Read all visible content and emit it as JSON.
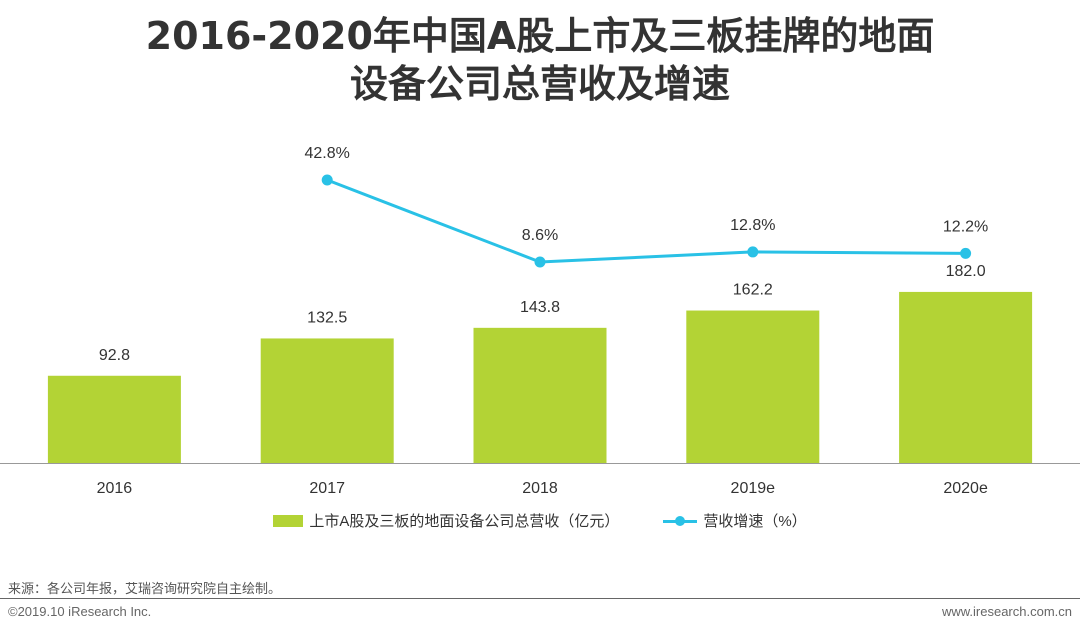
{
  "title_line1": "2016-2020年中国A股上市及三板挂牌的地面",
  "title_line2": "设备公司总营收及增速",
  "chart_data": {
    "type": "bar",
    "categories": [
      "2016",
      "2017",
      "2018",
      "2019e",
      "2020e"
    ],
    "series": [
      {
        "name": "上市A股及三板的地面设备公司总营收（亿元）",
        "type": "bar",
        "values": [
          92.8,
          132.5,
          143.8,
          162.2,
          182.0
        ],
        "labels": [
          "92.8",
          "132.5",
          "143.8",
          "162.2",
          "182.0"
        ],
        "color": "#b3d335"
      },
      {
        "name": "营收增速（%）",
        "type": "line",
        "values": [
          null,
          42.8,
          8.6,
          12.8,
          12.2
        ],
        "labels": [
          "",
          "42.8%",
          "8.6%",
          "12.8%",
          "12.2%"
        ],
        "color": "#29c1e6"
      }
    ],
    "bar_ylim": [
      0,
      190
    ],
    "line_ylim": [
      -60,
      45
    ]
  },
  "source_text": "来源：各公司年报，艾瑞咨询研究院自主绘制。",
  "copyright_text": "©2019.10 iResearch Inc.",
  "website_text": "www.iresearch.com.cn"
}
